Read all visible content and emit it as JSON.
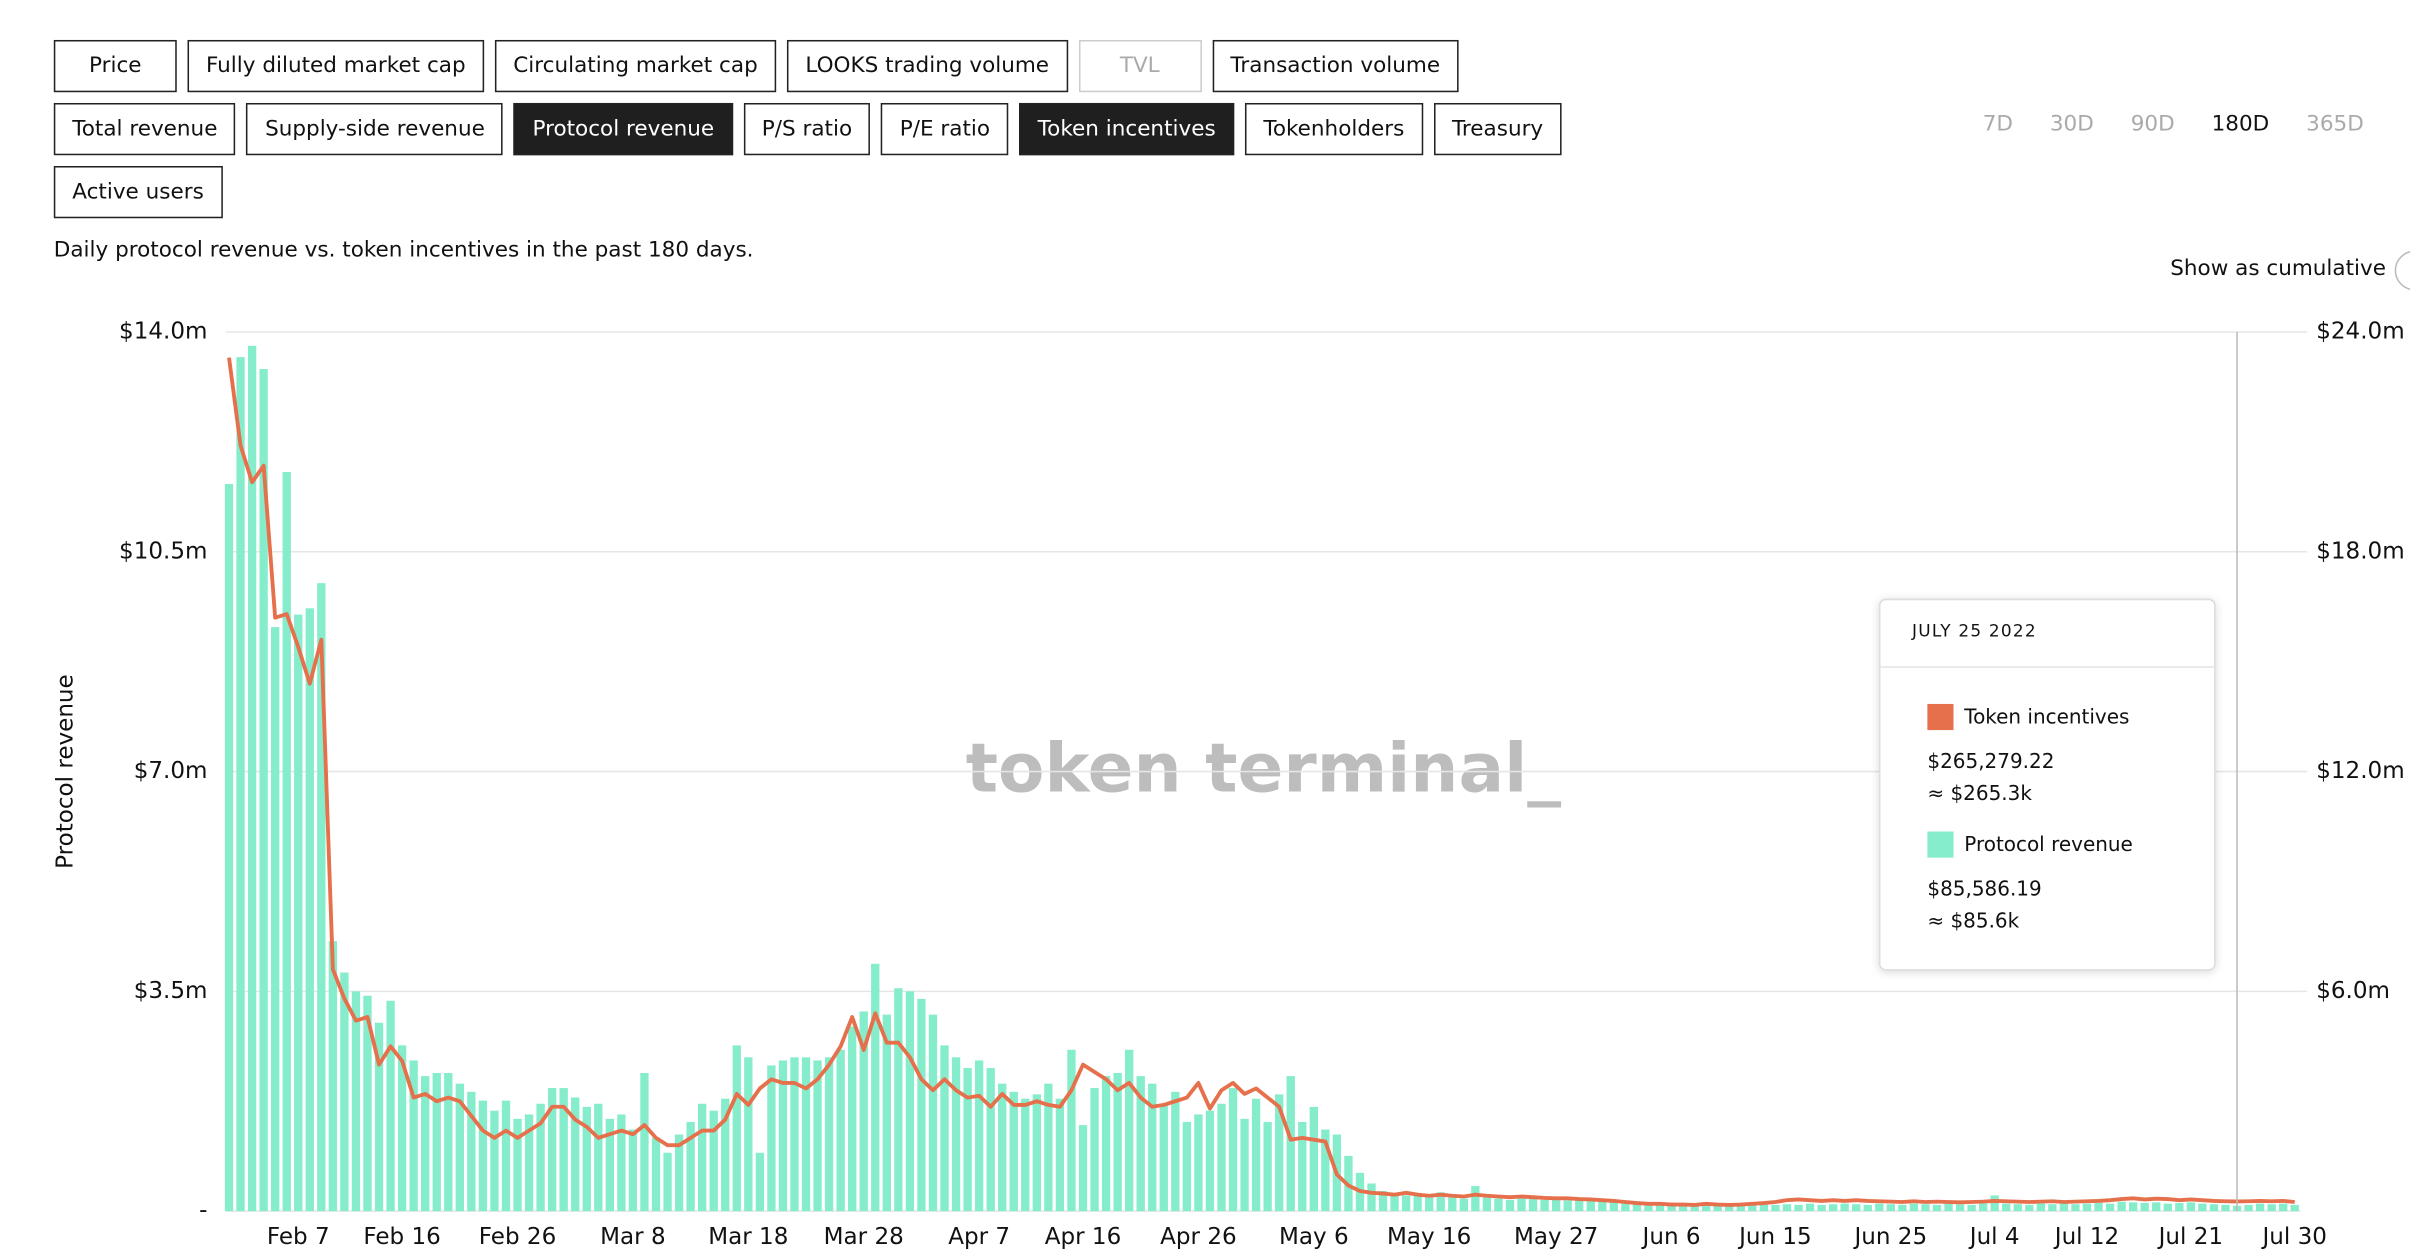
{
  "buttons": [
    [
      {
        "label": "Price"
      },
      {
        "label": "Fully diluted market cap"
      },
      {
        "label": "Circulating market cap"
      },
      {
        "label": "LOOKS trading volume"
      },
      {
        "label": "TVL",
        "disabled": true
      },
      {
        "label": "Transaction volume"
      }
    ],
    [
      {
        "label": "Total revenue"
      },
      {
        "label": "Supply-side revenue"
      },
      {
        "label": "Protocol revenue",
        "active": true
      },
      {
        "label": "P/S ratio"
      },
      {
        "label": "P/E ratio"
      },
      {
        "label": "Token incentives",
        "active": true
      },
      {
        "label": "Tokenholders"
      },
      {
        "label": "Treasury"
      }
    ],
    [
      {
        "label": "Active users"
      }
    ]
  ],
  "ranges": [
    {
      "label": "7D"
    },
    {
      "label": "30D"
    },
    {
      "label": "90D"
    },
    {
      "label": "180D",
      "active": true
    },
    {
      "label": "365D"
    }
  ],
  "description": "Daily protocol revenue vs. token incentives in the past 180 days.",
  "cumulative_label": "Show as cumulative",
  "chart_data": {
    "type": "combo",
    "ylabel": "Protocol revenue",
    "watermark": "token terminal_",
    "categories": [
      null,
      null,
      null,
      null,
      null,
      null,
      "Feb 7",
      null,
      null,
      null,
      null,
      null,
      null,
      null,
      null,
      "Feb 16",
      null,
      null,
      null,
      null,
      null,
      null,
      null,
      null,
      null,
      "Feb 26",
      null,
      null,
      null,
      null,
      null,
      null,
      null,
      null,
      null,
      "Mar 8",
      null,
      null,
      null,
      null,
      null,
      null,
      null,
      null,
      null,
      "Mar 18",
      null,
      null,
      null,
      null,
      null,
      null,
      null,
      null,
      null,
      "Mar 28",
      null,
      null,
      null,
      null,
      null,
      null,
      null,
      null,
      null,
      "Apr 7",
      null,
      null,
      null,
      null,
      null,
      null,
      null,
      null,
      "Apr 16",
      null,
      null,
      null,
      null,
      null,
      null,
      null,
      null,
      null,
      "Apr 26",
      null,
      null,
      null,
      null,
      null,
      null,
      null,
      null,
      null,
      "May 6",
      null,
      null,
      null,
      null,
      null,
      null,
      null,
      null,
      null,
      "May 16",
      null,
      null,
      null,
      null,
      null,
      null,
      null,
      null,
      null,
      null,
      "May 27",
      null,
      null,
      null,
      null,
      null,
      null,
      null,
      null,
      null,
      "Jun 6",
      null,
      null,
      null,
      null,
      null,
      null,
      null,
      null,
      "Jun 15",
      null,
      null,
      null,
      null,
      null,
      null,
      null,
      null,
      null,
      "Jun 25",
      null,
      null,
      null,
      null,
      null,
      null,
      null,
      null,
      "Jul 4",
      null,
      null,
      null,
      null,
      null,
      null,
      null,
      "Jul 12",
      null,
      null,
      null,
      null,
      null,
      null,
      null,
      null,
      "Jul 21",
      null,
      null,
      null,
      null,
      null,
      null,
      null,
      null,
      "Jul 30"
    ],
    "series": [
      {
        "name": "Token incentives",
        "type": "line",
        "axis": "y2",
        "color": "#e5704b",
        "values": [
          23.3,
          20.9,
          19.9,
          20.35,
          16.2,
          16.3,
          15.4,
          14.4,
          15.6,
          6.6,
          5.8,
          5.2,
          5.3,
          4.0,
          4.5,
          4.1,
          3.1,
          3.2,
          3.0,
          3.1,
          3.0,
          2.6,
          2.2,
          2.0,
          2.2,
          2.0,
          2.2,
          2.4,
          2.85,
          2.85,
          2.5,
          2.3,
          2.0,
          2.1,
          2.2,
          2.1,
          2.35,
          2.0,
          1.8,
          1.8,
          2.0,
          2.2,
          2.2,
          2.5,
          3.2,
          2.9,
          3.35,
          3.6,
          3.5,
          3.5,
          3.35,
          3.6,
          4.0,
          4.5,
          5.3,
          4.4,
          5.4,
          4.6,
          4.6,
          4.2,
          3.6,
          3.3,
          3.6,
          3.3,
          3.1,
          3.15,
          2.85,
          3.2,
          2.9,
          2.9,
          3.0,
          2.9,
          2.85,
          3.3,
          4.0,
          3.8,
          3.6,
          3.3,
          3.5,
          3.1,
          2.85,
          2.9,
          3.0,
          3.1,
          3.5,
          2.8,
          3.3,
          3.5,
          3.2,
          3.35,
          3.1,
          2.85,
          1.95,
          2.0,
          1.95,
          1.9,
          1.0,
          0.7,
          0.55,
          0.5,
          0.48,
          0.45,
          0.5,
          0.45,
          0.42,
          0.45,
          0.42,
          0.4,
          0.45,
          0.42,
          0.4,
          0.38,
          0.4,
          0.38,
          0.36,
          0.35,
          0.35,
          0.33,
          0.32,
          0.3,
          0.28,
          0.25,
          0.22,
          0.2,
          0.2,
          0.18,
          0.18,
          0.17,
          0.2,
          0.18,
          0.17,
          0.18,
          0.2,
          0.22,
          0.25,
          0.3,
          0.32,
          0.3,
          0.28,
          0.3,
          0.28,
          0.3,
          0.28,
          0.27,
          0.26,
          0.25,
          0.27,
          0.25,
          0.26,
          0.25,
          0.24,
          0.25,
          0.26,
          0.28,
          0.27,
          0.26,
          0.25,
          0.26,
          0.27,
          0.25,
          0.26,
          0.27,
          0.28,
          0.3,
          0.33,
          0.35,
          0.32,
          0.34,
          0.33,
          0.3,
          0.32,
          0.3,
          0.28,
          0.27,
          0.26527922,
          0.27,
          0.28,
          0.27,
          0.28,
          0.25
        ]
      },
      {
        "name": "Protocol revenue",
        "type": "bar",
        "color": "#85eccc",
        "values": [
          11.58,
          13.6,
          13.78,
          13.41,
          9.3,
          11.77,
          9.5,
          9.6,
          10.0,
          4.3,
          3.8,
          3.5,
          3.43,
          3.0,
          3.35,
          2.64,
          2.4,
          2.15,
          2.2,
          2.2,
          2.03,
          1.9,
          1.76,
          1.6,
          1.76,
          1.47,
          1.54,
          1.71,
          1.96,
          1.96,
          1.81,
          1.66,
          1.71,
          1.47,
          1.54,
          1.3,
          2.2,
          1.17,
          0.93,
          1.22,
          1.42,
          1.71,
          1.6,
          1.79,
          2.64,
          2.45,
          0.93,
          2.32,
          2.4,
          2.45,
          2.45,
          2.4,
          2.45,
          2.57,
          2.94,
          3.18,
          3.94,
          3.13,
          3.55,
          3.5,
          3.38,
          3.13,
          2.64,
          2.45,
          2.28,
          2.4,
          2.28,
          2.03,
          1.9,
          1.79,
          1.86,
          2.03,
          1.79,
          2.57,
          1.37,
          1.96,
          2.15,
          2.2,
          2.57,
          2.15,
          2.03,
          1.71,
          1.9,
          1.42,
          1.54,
          1.6,
          1.71,
          1.96,
          1.47,
          1.79,
          1.42,
          1.86,
          2.15,
          1.42,
          1.66,
          1.3,
          1.22,
          0.88,
          0.61,
          0.44,
          0.32,
          0.28,
          0.25,
          0.25,
          0.24,
          0.3,
          0.22,
          0.2,
          0.4,
          0.22,
          0.2,
          0.18,
          0.22,
          0.2,
          0.18,
          0.2,
          0.17,
          0.2,
          0.18,
          0.16,
          0.15,
          0.14,
          0.13,
          0.14,
          0.12,
          0.13,
          0.12,
          0.11,
          0.12,
          0.1,
          0.11,
          0.1,
          0.1,
          0.12,
          0.1,
          0.11,
          0.1,
          0.12,
          0.1,
          0.11,
          0.12,
          0.11,
          0.1,
          0.12,
          0.11,
          0.1,
          0.12,
          0.11,
          0.1,
          0.12,
          0.11,
          0.1,
          0.12,
          0.25,
          0.12,
          0.11,
          0.1,
          0.12,
          0.11,
          0.12,
          0.11,
          0.12,
          0.13,
          0.12,
          0.15,
          0.14,
          0.13,
          0.14,
          0.12,
          0.13,
          0.14,
          0.12,
          0.11,
          0.1,
          0.08558619,
          0.1,
          0.12,
          0.11,
          0.12,
          0.1
        ]
      }
    ],
    "ylim": [
      0,
      14
    ],
    "yticks": [
      {
        "value": 0,
        "label": "-"
      },
      {
        "value": 3.5,
        "label": "$3.5m"
      },
      {
        "value": 7,
        "label": "$7.0m"
      },
      {
        "value": 10.5,
        "label": "$10.5m"
      },
      {
        "value": 14,
        "label": "$14.0m"
      }
    ],
    "y2lim": [
      0,
      24
    ],
    "y2ticks": [
      {
        "value": 6,
        "label": "$6.0m"
      },
      {
        "value": 12,
        "label": "$12.0m"
      },
      {
        "value": 18,
        "label": "$18.0m"
      },
      {
        "value": 24,
        "label": "$24.0m"
      }
    ],
    "grid": true,
    "tooltip": {
      "title": "JULY 25 2022",
      "items": [
        {
          "value_label": "$265,279.22",
          "approx_label": "≈ $265.3k"
        },
        {
          "value_label": "$85,586.19",
          "approx_label": "≈ $85.6k"
        }
      ]
    }
  }
}
